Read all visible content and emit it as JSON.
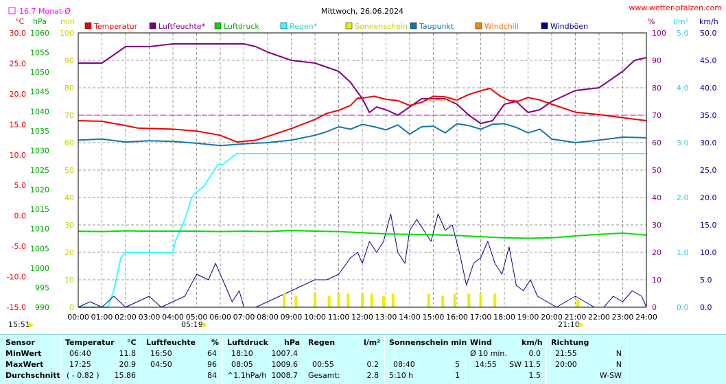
{
  "header": {
    "title": "Mittwoch, 26.06.2024",
    "site": "www.wetter-pfalzen.com",
    "month_avg": "16.7 Monat-Ø",
    "time_start": "15:51",
    "sunrise": "05:19",
    "sunset": "21:10"
  },
  "legend": [
    "Temperatur",
    "Luftfeuchte*",
    "Luftdruck",
    "Regen*",
    "Sonnenschein",
    "Taupunkt",
    "Windchill",
    "Windböen"
  ],
  "colors": {
    "temperatur": "#ee0000",
    "luftfeuchte": "#800080",
    "luftdruck": "#00dd00",
    "regen": "#33ffff",
    "sonnenschein": "#eeee00",
    "taupunkt": "#1177aa",
    "windchill": "#ff8800",
    "windboeen": "#000088",
    "humidity_ref": "#cc00cc"
  },
  "axes": {
    "celsius_unit": "°C",
    "hpa_unit": "hPa",
    "min_unit": "min",
    "pct_unit": "%",
    "rain_unit": "l/m²",
    "wind_unit": "km/h",
    "celsius": [
      "30.0",
      "25.0",
      "20.0",
      "15.0",
      "10.0",
      "5.0",
      "0.0",
      "-5.0",
      "-10.0",
      "-15.0"
    ],
    "hpa": [
      "1060",
      "1055",
      "1050",
      "1045",
      "1040",
      "1035",
      "1030",
      "1025",
      "1020",
      "1015",
      "1010",
      "1005",
      "1000",
      "995",
      "990"
    ],
    "minutes": [
      "100",
      "90",
      "80",
      "70",
      "60",
      "50",
      "40",
      "30",
      "20",
      "10",
      "0"
    ],
    "percent": [
      "100",
      "90",
      "80",
      "70",
      "60",
      "50",
      "40",
      "30",
      "20",
      "10",
      "0"
    ],
    "rain": [
      "5.0",
      "4.0",
      "3.0",
      "2.0",
      "1.0",
      "0.0"
    ],
    "kmh": [
      "50.0",
      "45.0",
      "40.0",
      "35.0",
      "30.0",
      "25.0",
      "20.0",
      "15.0",
      "10.0",
      "5.0",
      "0.0"
    ],
    "hours": [
      "00:00",
      "01:00",
      "02:00",
      "03:00",
      "04:00",
      "05:00",
      "06:00",
      "07:00",
      "08:00",
      "09:00",
      "10:00",
      "11:00",
      "12:00",
      "13:00",
      "14:00",
      "15:00",
      "16:00",
      "17:00",
      "18:00",
      "19:00",
      "20:00",
      "21:00",
      "22:00",
      "23:00",
      "24:00"
    ]
  },
  "chart_data": {
    "type": "line",
    "title": "Mittwoch, 26.06.2024",
    "x_unit": "hour",
    "series": [
      {
        "name": "Temperatur",
        "unit": "°C",
        "x": [
          0,
          1,
          2,
          2.5,
          4,
          5,
          6,
          6.7,
          7.5,
          8,
          9,
          10,
          10.5,
          11,
          11.5,
          11.8,
          12,
          12.5,
          13,
          13.5,
          14,
          14.5,
          15,
          15.5,
          16,
          16.5,
          17,
          17.4,
          17.8,
          18.2,
          18.6,
          19,
          19.5,
          20,
          21,
          22,
          23,
          24
        ],
        "y": [
          15.6,
          15.5,
          14.8,
          14.4,
          14.2,
          13.9,
          13.2,
          12.1,
          12.4,
          13.0,
          14.3,
          15.8,
          16.8,
          17.3,
          18.1,
          19.3,
          19.3,
          19.6,
          19.1,
          18.9,
          18.1,
          18.6,
          19.6,
          19.5,
          19.0,
          19.9,
          20.5,
          20.9,
          19.7,
          18.9,
          18.8,
          19.4,
          19.0,
          18.3,
          17.0,
          16.6,
          16.1,
          15.6
        ]
      },
      {
        "name": "Luftfeuchte*",
        "unit": "%",
        "x": [
          0,
          1,
          1.5,
          2,
          3,
          4,
          5,
          6,
          7,
          7.5,
          8,
          9,
          10,
          11,
          11.5,
          12,
          12.3,
          12.6,
          13,
          13.5,
          14,
          14.5,
          15,
          15.5,
          16,
          16.5,
          17,
          17.5,
          18,
          18.5,
          19,
          19.5,
          20,
          21,
          22,
          23,
          23.5,
          24
        ],
        "y": [
          89,
          89,
          92,
          95,
          95,
          96,
          96,
          96,
          96,
          95,
          93,
          90,
          89,
          86,
          82,
          76,
          71,
          73,
          72,
          70,
          73,
          76,
          76,
          76,
          74,
          70,
          67,
          68,
          74,
          75,
          71,
          72,
          75,
          79,
          80,
          86,
          90,
          91
        ]
      },
      {
        "name": "Luftdruck",
        "unit": "hPa",
        "x": [
          0,
          1,
          2,
          3,
          4,
          5,
          6,
          7,
          8,
          9,
          10,
          11,
          12,
          13,
          14,
          15,
          16,
          17,
          18,
          19,
          20,
          21,
          22,
          23,
          24
        ],
        "y": [
          1009.4,
          1009.3,
          1009.5,
          1009.4,
          1009.4,
          1009.4,
          1009.3,
          1009.4,
          1009.3,
          1009.6,
          1009.4,
          1009.3,
          1009.0,
          1008.7,
          1008.6,
          1008.5,
          1008.3,
          1008.0,
          1007.7,
          1007.6,
          1007.7,
          1008.2,
          1008.6,
          1008.9,
          1008.4
        ]
      },
      {
        "name": "Regen*",
        "unit": "l/m²",
        "x": [
          0,
          1,
          1.25,
          1.5,
          1.8,
          2,
          2.5,
          3,
          3.5,
          4,
          4.1,
          4.3,
          4.5,
          4.8,
          5,
          5.3,
          5.6,
          5.9,
          6.1,
          6.4,
          6.7,
          7,
          7.5,
          8,
          9,
          10,
          11,
          12,
          13,
          14,
          15,
          16,
          17,
          18,
          19,
          20,
          21,
          22,
          23,
          24
        ],
        "y": [
          0,
          0,
          0,
          0.3,
          0.9,
          1.0,
          1.0,
          1.0,
          1.0,
          1.0,
          1.2,
          1.4,
          1.6,
          2.0,
          2.1,
          2.2,
          2.4,
          2.6,
          2.6,
          2.7,
          2.8,
          2.8,
          2.8,
          2.8,
          2.8,
          2.8,
          2.8,
          2.8,
          2.8,
          2.8,
          2.8,
          2.8,
          2.8,
          2.8,
          2.8,
          2.8,
          2.8,
          2.8,
          2.8,
          2.8
        ]
      },
      {
        "name": "Sonnenschein",
        "unit": "min",
        "x": [
          8.7,
          9.2,
          10,
          10.6,
          11,
          11.4,
          12,
          12.4,
          12.9,
          13.3,
          14.8,
          15.4,
          15.9,
          16.5,
          17,
          17.6,
          21.1
        ],
        "y": [
          5,
          4,
          5,
          4,
          5,
          5,
          5,
          5,
          4,
          5,
          5,
          4,
          5,
          5,
          5,
          5,
          3
        ]
      },
      {
        "name": "Taupunkt",
        "unit": "°C",
        "x": [
          0,
          1,
          2,
          3,
          4,
          5,
          6,
          7,
          8,
          9,
          10,
          10.5,
          11,
          11.5,
          12,
          12.5,
          13,
          13.5,
          14,
          14.5,
          15,
          15.5,
          16,
          16.5,
          17,
          17.5,
          18,
          18.5,
          19,
          19.5,
          20,
          21,
          22,
          23,
          24
        ],
        "y": [
          12.4,
          12.6,
          12.1,
          12.3,
          12.2,
          11.9,
          11.5,
          11.8,
          12.0,
          12.4,
          13.2,
          13.8,
          14.6,
          14.2,
          15.0,
          14.6,
          14.1,
          14.9,
          13.4,
          14.6,
          14.7,
          13.6,
          15.1,
          14.8,
          14.2,
          15.0,
          15.1,
          14.5,
          13.6,
          14.2,
          12.6,
          12.0,
          12.4,
          12.9,
          12.8
        ]
      },
      {
        "name": "Windböen",
        "unit": "km/h",
        "x": [
          0,
          0.5,
          1,
          1.5,
          2,
          2.5,
          3,
          3.5,
          4,
          4.5,
          5,
          5.5,
          5.8,
          6,
          6.3,
          6.5,
          6.8,
          7,
          7.5,
          8,
          8.5,
          9,
          9.5,
          10,
          10.5,
          11,
          11.5,
          11.8,
          12,
          12.3,
          12.6,
          12.9,
          13.2,
          13.5,
          13.8,
          14,
          14.3,
          14.6,
          14.9,
          15.2,
          15.5,
          15.8,
          16.1,
          16.4,
          16.7,
          17,
          17.3,
          17.6,
          17.9,
          18.2,
          18.5,
          18.8,
          19.1,
          19.4,
          19.8,
          20.2,
          20.6,
          21,
          21.4,
          21.8,
          22.2,
          22.6,
          23,
          23.4,
          23.8,
          24
        ],
        "y": [
          0,
          1,
          0,
          2,
          0,
          1,
          2,
          0,
          1,
          2,
          6,
          5,
          8,
          6,
          3,
          1,
          3,
          0,
          0,
          1,
          2,
          3,
          4,
          5,
          5,
          6,
          9,
          10,
          8,
          12,
          10,
          12,
          17,
          10,
          8,
          14,
          16,
          14,
          12,
          17,
          14,
          15,
          10,
          4,
          8,
          9,
          12,
          8,
          6,
          11,
          4,
          3,
          5,
          2,
          1,
          0,
          1,
          2,
          1,
          0,
          0,
          2,
          1,
          3,
          2,
          0
        ]
      },
      {
        "name": "Windchill",
        "unit": "°C",
        "x": [
          14.8,
          15.0,
          15.2,
          15.4,
          15.6,
          15.8,
          16.0
        ],
        "y": [
          19.0,
          18.7,
          19.1,
          18.8,
          19.2,
          18.7,
          19.1
        ]
      }
    ],
    "reference_lines": [
      {
        "name": "humidity",
        "unit": "%",
        "value": 70
      }
    ],
    "ylim_celsius": [
      -15,
      30
    ],
    "ylim_hpa": [
      990,
      1060
    ],
    "ylim_percent": [
      0,
      100
    ],
    "ylim_rain": [
      0,
      5
    ],
    "ylim_kmh": [
      0,
      50
    ],
    "xlim": [
      0,
      24
    ],
    "grid": true
  },
  "stats": {
    "headers": {
      "sensor": "Sensor",
      "temperatur": "Temperatur",
      "temp_unit": "°C",
      "luftfeuchte": "Luftfeuchte",
      "lf_unit": "%",
      "luftdruck": "Luftdruck",
      "ld_unit": "hPa",
      "regen": "Regen",
      "rg_unit": "l/m²",
      "sonnenschein": "Sonnenschein min",
      "wind": "Wind",
      "wind_unit": "km/h",
      "richtung": "Richtung"
    },
    "rows": [
      {
        "label": "MinWert",
        "t_time": "06:40",
        "t_val": "11.8",
        "h_time": "16:50",
        "h_val": "64",
        "p_time": "18:10",
        "p_val": "1007.4",
        "r_time": "",
        "r_val": "",
        "s_time": "",
        "s_val": "",
        "w_time": "Ø 10 min.",
        "w_val": "0.0",
        "d_time": "21:55",
        "d_val": "N"
      },
      {
        "label": "MaxWert",
        "t_time": "17:25",
        "t_val": "20.9",
        "h_time": "04:50",
        "h_val": "96",
        "p_time": "08:05",
        "p_val": "1009.6",
        "r_time": "00:55",
        "r_val": "0.2",
        "s_time": "08:40",
        "s_val": "5",
        "w_time": "14:55",
        "w_val": "SW 11.5",
        "d_time": "20:00",
        "d_val": "N"
      },
      {
        "label": "Durchschnitt",
        "t_time": "( - 0.82 )",
        "t_val": "15.86",
        "h_time": "",
        "h_val": "84",
        "p_time": "^1.1hPa/h",
        "p_val": "1008.7",
        "r_time": "Gesamt:",
        "r_val": "2.8",
        "s_time": "5:10 h",
        "s_val": "1",
        "w_time": "",
        "w_val": "1.5",
        "d_time": "",
        "d_val": "W-SW"
      }
    ]
  }
}
